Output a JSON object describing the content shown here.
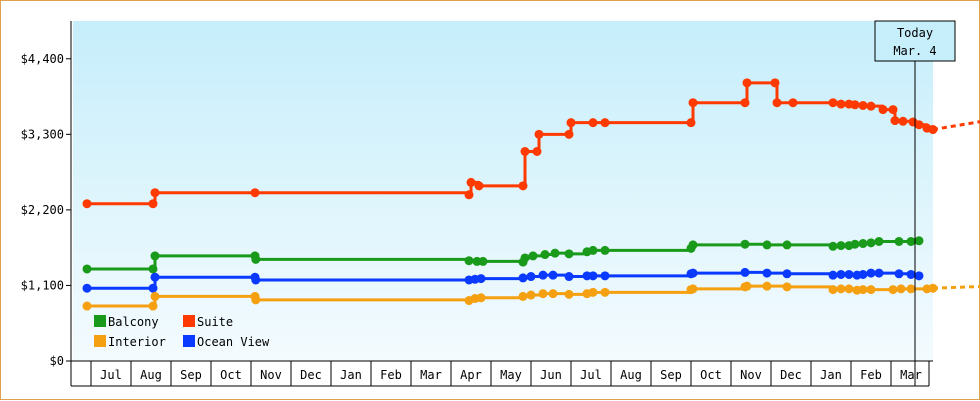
{
  "chart_data": {
    "type": "line",
    "title": "",
    "xlabel": "",
    "ylabel": "",
    "ylim": [
      0,
      4950
    ],
    "y_ticks": [
      {
        "value": 0,
        "label": "$0"
      },
      {
        "value": 1100,
        "label": "$1,100"
      },
      {
        "value": 2200,
        "label": "$2,200"
      },
      {
        "value": 3300,
        "label": "$3,300"
      },
      {
        "value": 4400,
        "label": "$4,400"
      }
    ],
    "x_months": [
      "Jul",
      "Aug",
      "Sep",
      "Oct",
      "Nov",
      "Dec",
      "Jan",
      "Feb",
      "Mar",
      "Apr",
      "May",
      "Jun",
      "Jul",
      "Aug",
      "Sep",
      "Oct",
      "Nov",
      "Dec",
      "Jan",
      "Feb",
      "Mar"
    ],
    "today": {
      "line1": "Today",
      "line2": "Mar. 4",
      "x": 20.6
    },
    "grid": false,
    "legend_position": "bottom-left",
    "colors": {
      "Balcony": "#1a9a1a",
      "Suite": "#ff3a00",
      "Interior": "#f5a010",
      "Ocean View": "#0a3aff"
    },
    "series": [
      {
        "name": "Suite",
        "step": true,
        "points": [
          [
            -0.1,
            2290
          ],
          [
            1.55,
            2290
          ],
          [
            1.6,
            2450
          ],
          [
            4.1,
            2450
          ],
          [
            9.45,
            2420
          ],
          [
            9.5,
            2600
          ],
          [
            9.7,
            2550
          ],
          [
            10.8,
            2550
          ],
          [
            10.85,
            3050
          ],
          [
            11.15,
            3050
          ],
          [
            11.2,
            3300
          ],
          [
            11.95,
            3300
          ],
          [
            12.0,
            3470
          ],
          [
            12.55,
            3470
          ],
          [
            12.85,
            3470
          ],
          [
            15.0,
            3470
          ],
          [
            15.05,
            3760
          ],
          [
            16.35,
            3760
          ],
          [
            16.4,
            4050
          ],
          [
            17.1,
            4050
          ],
          [
            17.15,
            3760
          ],
          [
            17.55,
            3760
          ],
          [
            18.55,
            3760
          ],
          [
            18.75,
            3740
          ],
          [
            18.95,
            3740
          ],
          [
            19.1,
            3730
          ],
          [
            19.3,
            3720
          ],
          [
            19.5,
            3710
          ],
          [
            19.8,
            3660
          ],
          [
            20.05,
            3660
          ],
          [
            20.1,
            3500
          ],
          [
            20.3,
            3490
          ],
          [
            20.55,
            3480
          ],
          [
            20.7,
            3440
          ],
          [
            20.9,
            3390
          ],
          [
            21.05,
            3370
          ]
        ],
        "forecast": [
          [
            21.05,
            3370
          ],
          [
            22.5,
            3510
          ]
        ]
      },
      {
        "name": "Balcony",
        "step": true,
        "points": [
          [
            -0.1,
            1340
          ],
          [
            1.55,
            1340
          ],
          [
            1.6,
            1530
          ],
          [
            4.1,
            1530
          ],
          [
            4.12,
            1480
          ],
          [
            9.45,
            1460
          ],
          [
            9.65,
            1450
          ],
          [
            9.8,
            1450
          ],
          [
            10.8,
            1440
          ],
          [
            10.85,
            1500
          ],
          [
            11.05,
            1530
          ],
          [
            11.35,
            1550
          ],
          [
            11.6,
            1570
          ],
          [
            11.95,
            1560
          ],
          [
            12.4,
            1590
          ],
          [
            12.55,
            1610
          ],
          [
            12.85,
            1610
          ],
          [
            15.0,
            1640
          ],
          [
            15.05,
            1690
          ],
          [
            16.35,
            1700
          ],
          [
            16.9,
            1690
          ],
          [
            17.4,
            1690
          ],
          [
            18.55,
            1670
          ],
          [
            18.75,
            1680
          ],
          [
            18.95,
            1680
          ],
          [
            19.1,
            1700
          ],
          [
            19.3,
            1710
          ],
          [
            19.5,
            1720
          ],
          [
            19.7,
            1740
          ],
          [
            20.2,
            1740
          ],
          [
            20.5,
            1740
          ],
          [
            20.7,
            1750
          ]
        ],
        "forecast": []
      },
      {
        "name": "Ocean View",
        "step": true,
        "points": [
          [
            -0.1,
            1060
          ],
          [
            1.55,
            1060
          ],
          [
            1.6,
            1220
          ],
          [
            4.1,
            1220
          ],
          [
            4.12,
            1180
          ],
          [
            9.45,
            1180
          ],
          [
            9.6,
            1190
          ],
          [
            9.75,
            1200
          ],
          [
            10.8,
            1210
          ],
          [
            11.0,
            1230
          ],
          [
            11.3,
            1250
          ],
          [
            11.55,
            1250
          ],
          [
            11.95,
            1230
          ],
          [
            12.4,
            1240
          ],
          [
            12.55,
            1240
          ],
          [
            12.85,
            1240
          ],
          [
            15.0,
            1270
          ],
          [
            15.05,
            1280
          ],
          [
            16.35,
            1290
          ],
          [
            16.9,
            1280
          ],
          [
            17.4,
            1270
          ],
          [
            18.55,
            1250
          ],
          [
            18.75,
            1260
          ],
          [
            18.95,
            1260
          ],
          [
            19.15,
            1250
          ],
          [
            19.3,
            1260
          ],
          [
            19.5,
            1280
          ],
          [
            19.7,
            1280
          ],
          [
            20.2,
            1270
          ],
          [
            20.5,
            1260
          ],
          [
            20.7,
            1240
          ]
        ],
        "forecast": []
      },
      {
        "name": "Interior",
        "step": true,
        "points": [
          [
            -0.1,
            800
          ],
          [
            1.55,
            800
          ],
          [
            1.6,
            940
          ],
          [
            4.1,
            940
          ],
          [
            4.12,
            890
          ],
          [
            9.45,
            880
          ],
          [
            9.6,
            910
          ],
          [
            9.75,
            920
          ],
          [
            10.8,
            940
          ],
          [
            11.0,
            960
          ],
          [
            11.3,
            980
          ],
          [
            11.55,
            980
          ],
          [
            11.95,
            970
          ],
          [
            12.4,
            980
          ],
          [
            12.55,
            1000
          ],
          [
            12.85,
            1000
          ],
          [
            15.0,
            1040
          ],
          [
            15.05,
            1050
          ],
          [
            16.35,
            1080
          ],
          [
            16.4,
            1090
          ],
          [
            16.9,
            1090
          ],
          [
            17.4,
            1080
          ],
          [
            18.55,
            1040
          ],
          [
            18.75,
            1050
          ],
          [
            18.95,
            1050
          ],
          [
            19.15,
            1030
          ],
          [
            19.3,
            1040
          ],
          [
            19.5,
            1040
          ],
          [
            20.05,
            1040
          ],
          [
            20.25,
            1050
          ],
          [
            20.5,
            1050
          ],
          [
            20.9,
            1050
          ],
          [
            21.05,
            1060
          ]
        ],
        "forecast": [
          [
            21.05,
            1060
          ],
          [
            22.5,
            1090
          ]
        ]
      }
    ],
    "legend": [
      "Balcony",
      "Suite",
      "Interior",
      "Ocean View"
    ]
  }
}
